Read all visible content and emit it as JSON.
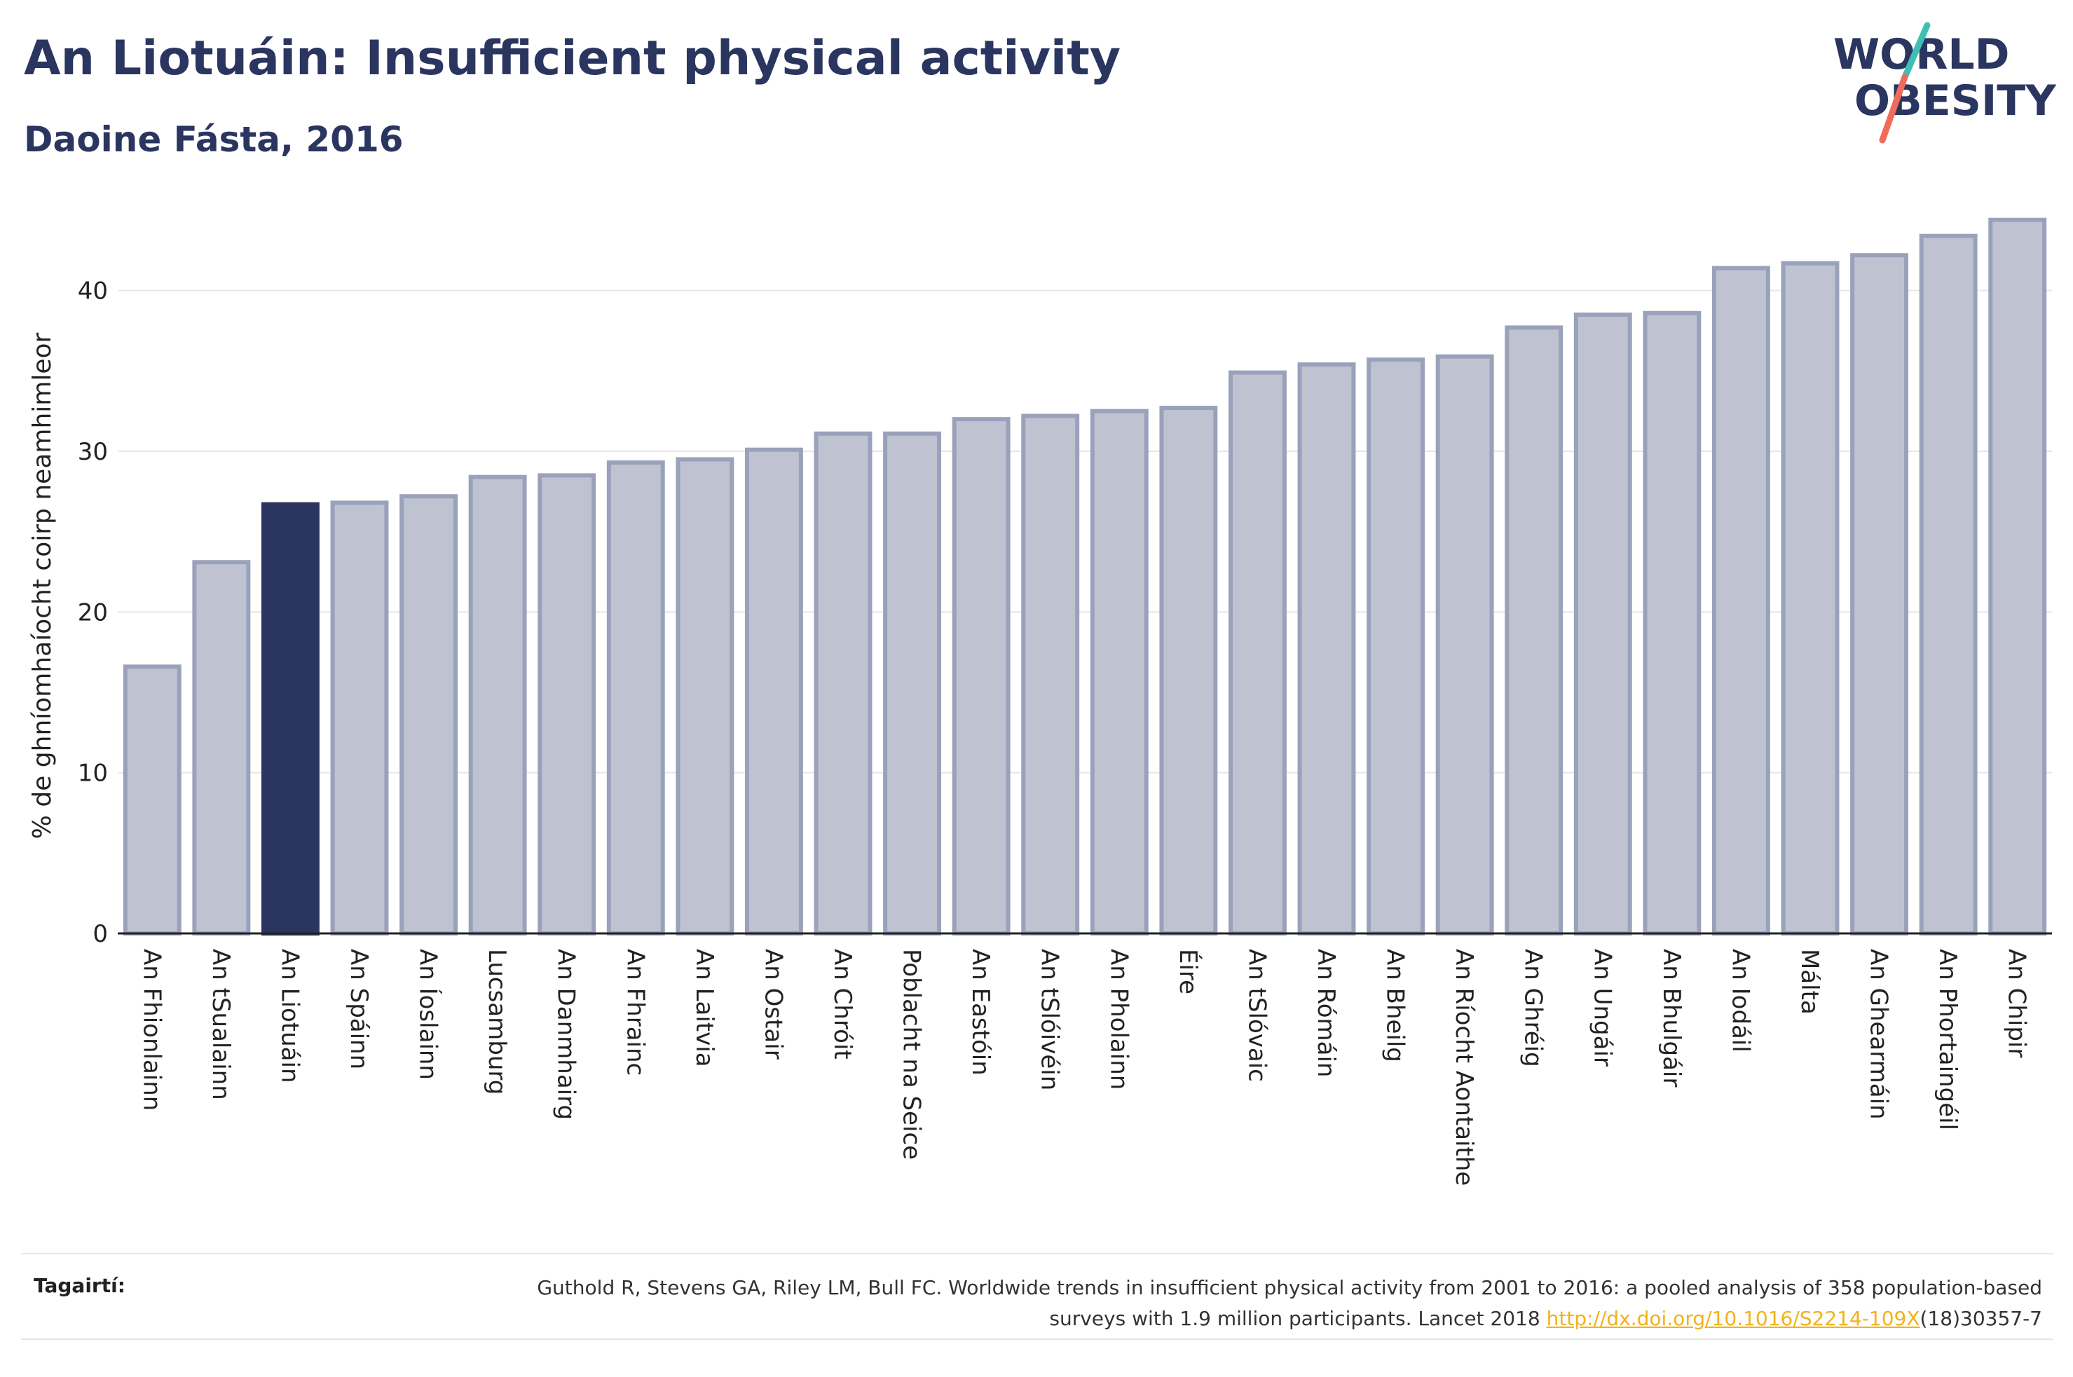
{
  "header": {
    "title": "An Liotuáin: Insufficient physical activity",
    "subtitle": "Daoine Fásta, 2016"
  },
  "logo": {
    "line1": "WORLD",
    "line2": "OBESITY",
    "text_color": "#2a3560",
    "slash_colors": [
      "#3fbfb3",
      "#f06b5a"
    ]
  },
  "colors": {
    "highlight": "#2a3560",
    "bar_fill": "#bfc3d1",
    "bar_stroke": "#9aa1bb",
    "grid": "#e6e6e6",
    "axis": "#222222"
  },
  "chart_data": {
    "type": "bar",
    "ylabel": "% de ghníomhaíocht coirp neamhimleor",
    "ylim": [
      0,
      45
    ],
    "yticks": [
      0,
      10,
      20,
      30,
      40
    ],
    "grid": true,
    "highlight": "An Liotuáin",
    "categories": [
      "An Fhionlainn",
      "An tSualainn",
      "An Liotuáin",
      "An Spáinn",
      "An Íoslainn",
      "Lucsamburg",
      "An Danmhairg",
      "An Fhrainc",
      "An Laitvia",
      "An Ostair",
      "An Chróit",
      "Poblacht na Seice",
      "An Eastóin",
      "An tSlóivéin",
      "An Pholainn",
      "Éire",
      "An tSlóvaic",
      "An Rómáin",
      "An Bheilg",
      "An Ríocht Aontaithe",
      "An Ghréig",
      "An Ungáir",
      "An Bhulgáir",
      "An Iodáil",
      "Málta",
      "An Ghearmáin",
      "An Phortaingéil",
      "An Chipir"
    ],
    "values": [
      16.6,
      23.1,
      26.7,
      26.8,
      27.2,
      28.4,
      28.5,
      29.3,
      29.5,
      30.1,
      31.1,
      31.1,
      32.0,
      32.2,
      32.5,
      32.7,
      34.9,
      35.4,
      35.7,
      35.9,
      37.7,
      38.5,
      38.6,
      41.4,
      41.7,
      42.2,
      43.4,
      44.4
    ]
  },
  "footer": {
    "label": "Tagairtí:",
    "ref_part1": "Guthold R, Stevens GA, Riley LM, Bull FC. Worldwide trends in insufficient physical activity from 2001 to 2016: a pooled analysis of 358 population-based surveys with 1.9 million participants. Lancet 2018 ",
    "ref_link": "http://dx.doi.org/10.1016/S2214-109X",
    "ref_part2": "(18)30357-7"
  }
}
